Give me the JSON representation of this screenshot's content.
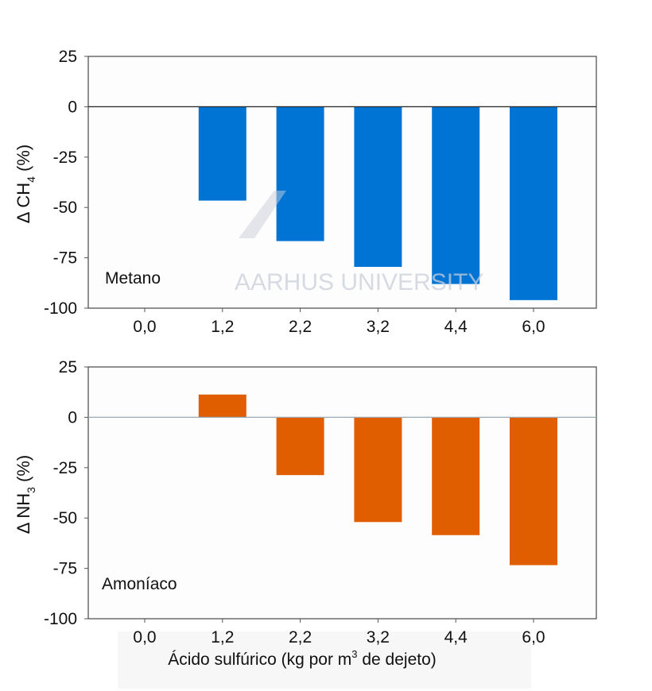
{
  "watermark": "AARHUS UNIVERSITY",
  "xlabel_main": "Ácido sulfúrico (kg por m",
  "xlabel_sup": "3",
  "xlabel_tail": " de dejeto)",
  "chart_data": [
    {
      "type": "bar",
      "annotation": "Metano",
      "ylabel_main": "Δ CH",
      "ylabel_sub": "4",
      "ylabel_tail": " (%)",
      "categories": [
        "0,0",
        "1,2",
        "2,2",
        "3,2",
        "4,4",
        "6,0"
      ],
      "values": [
        0,
        -46.6,
        -66.7,
        -79.5,
        -88,
        -96
      ],
      "yticks": [
        "25",
        "0",
        "-25",
        "-50",
        "-75",
        "-100"
      ],
      "ylim": [
        -100,
        25
      ],
      "color": "#0074d4",
      "zero_line_color": "#222222",
      "grid": false
    },
    {
      "type": "bar",
      "annotation": "Amoníaco",
      "ylabel_main": "Δ NH",
      "ylabel_sub": "3",
      "ylabel_tail": " (%)",
      "categories": [
        "0,0",
        "1,2",
        "2,2",
        "3,2",
        "4,4",
        "6,0"
      ],
      "values": [
        0,
        11.3,
        -28.7,
        -52,
        -58.5,
        -73.4
      ],
      "yticks": [
        "25",
        "0",
        "-25",
        "-50",
        "-75",
        "-100"
      ],
      "ylim": [
        -100,
        25
      ],
      "color": "#e05e00",
      "zero_line_color": "#9aa8b0",
      "grid": false
    }
  ]
}
